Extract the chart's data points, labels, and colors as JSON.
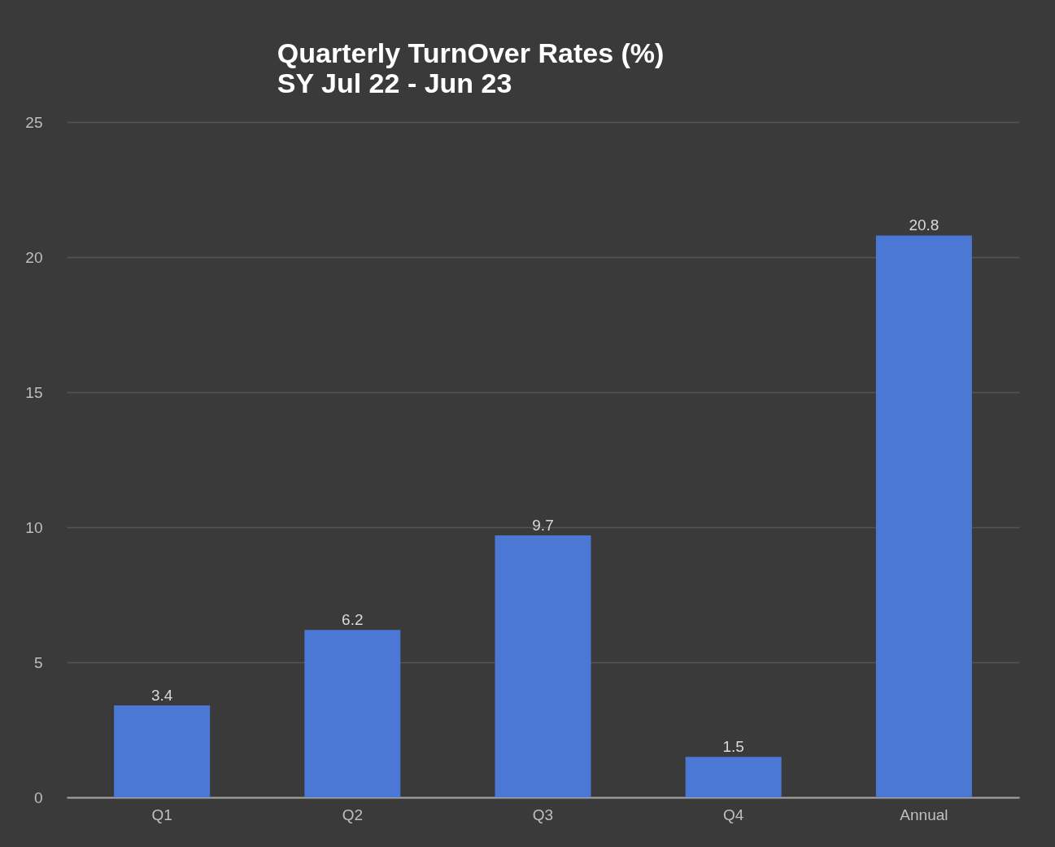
{
  "chart_data": {
    "type": "bar",
    "title": "Quarterly TurnOver Rates (%)",
    "subtitle": "SY Jul 22 - Jun 23",
    "categories": [
      "Q1",
      "Q2",
      "Q3",
      "Q4",
      "Annual"
    ],
    "values": [
      3.4,
      6.2,
      9.7,
      1.5,
      20.8
    ],
    "color": "#4a78d4",
    "ylim": [
      0,
      25
    ],
    "yticks": [
      0,
      5,
      10,
      15,
      20,
      25
    ],
    "grid": "y",
    "data_labels": true
  }
}
